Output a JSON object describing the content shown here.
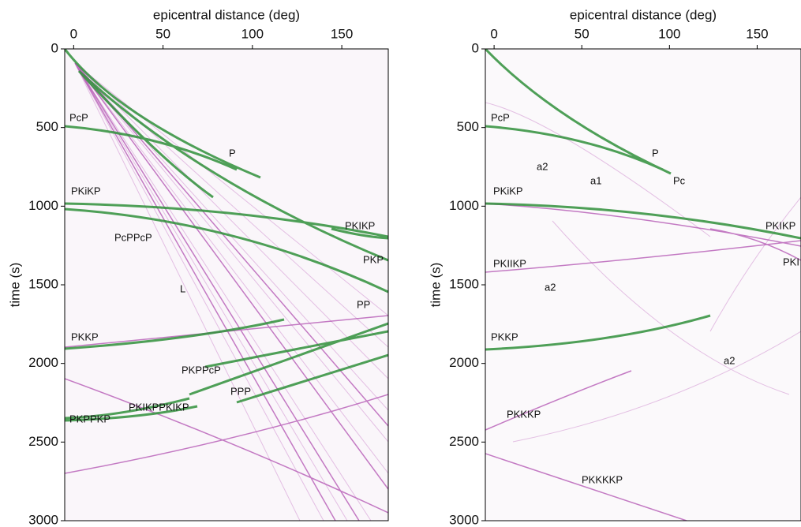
{
  "chart_data": [
    {
      "type": "image",
      "xlabel": "epicentral distance (deg)",
      "ylabel": "time (s)",
      "xlim": [
        -5,
        176
      ],
      "xticks": [
        0,
        50,
        100,
        150
      ],
      "ylim": [
        0,
        3000
      ],
      "yticks": [
        0,
        500,
        1000,
        1500,
        2000,
        2500,
        3000
      ],
      "annotations": [
        "PcP",
        "P",
        "PKiKP",
        "PKIKP",
        "PcPPcP",
        "PKP",
        "L",
        "PP",
        "PKKP",
        "PKPPcP",
        "PPP",
        "PKIKPPKIKP",
        "PKPPKP"
      ]
    },
    {
      "type": "image",
      "xlabel": "epicentral distance (deg)",
      "ylabel": "time (s)",
      "xlim": [
        -5,
        175
      ],
      "xticks": [
        0,
        50,
        100,
        150
      ],
      "ylim": [
        0,
        3000
      ],
      "yticks": [
        0,
        500,
        1000,
        1500,
        2000,
        2500,
        3000
      ],
      "annotations": [
        "PcP",
        "P",
        "a2",
        "a1",
        "Pc",
        "PKiKP",
        "PKIKP",
        "PKIIKP",
        "PKI",
        "a2",
        "PKKP",
        "a2",
        "PKKKP",
        "PKKKKP"
      ]
    }
  ]
}
